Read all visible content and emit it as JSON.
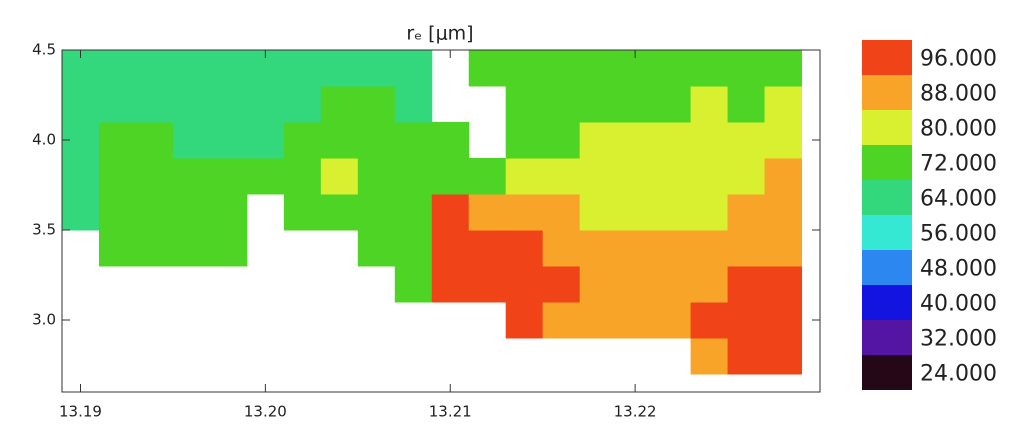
{
  "chart_data": {
    "type": "heatmap",
    "title": "rₑ [μm]",
    "xlim": [
      13.189,
      13.23
    ],
    "ylim": [
      2.6,
      4.5
    ],
    "xticks": [
      13.19,
      {
        "value": 13.2,
        "label": "13.20"
      },
      13.21,
      13.22
    ],
    "yticks": [
      {
        "value": 3.0,
        "label": "3.0"
      },
      3.5,
      {
        "value": 4.0,
        "label": "4.0"
      },
      4.5
    ],
    "xbins": [
      13.189,
      13.191,
      13.193,
      13.195,
      13.197,
      13.199,
      13.201,
      13.203,
      13.205,
      13.207,
      13.209,
      13.211,
      13.213,
      13.215,
      13.217,
      13.219,
      13.221,
      13.223,
      13.225,
      13.227,
      13.229
    ],
    "ybins": [
      2.7,
      2.9,
      3.1,
      3.3,
      3.5,
      3.7,
      3.9,
      4.1,
      4.3,
      4.5
    ],
    "z": [
      [
        null,
        null,
        null,
        null,
        null,
        null,
        null,
        null,
        null,
        null,
        null,
        null,
        null,
        null,
        null,
        null,
        null,
        90,
        96,
        94
      ],
      [
        null,
        null,
        null,
        null,
        null,
        null,
        null,
        null,
        null,
        null,
        null,
        null,
        92,
        90,
        86,
        88,
        88,
        92,
        96,
        94
      ],
      [
        null,
        null,
        null,
        null,
        null,
        null,
        null,
        null,
        null,
        72,
        94,
        92,
        96,
        92,
        86,
        88,
        88,
        90,
        94,
        92
      ],
      [
        null,
        68,
        68,
        70,
        70,
        null,
        null,
        null,
        68,
        74,
        96,
        94,
        94,
        90,
        84,
        86,
        86,
        84,
        88,
        90
      ],
      [
        66,
        68,
        70,
        70,
        70,
        null,
        70,
        72,
        70,
        72,
        92,
        90,
        88,
        84,
        80,
        82,
        80,
        82,
        84,
        86
      ],
      [
        66,
        68,
        70,
        68,
        68,
        68,
        70,
        80,
        72,
        72,
        70,
        72,
        76,
        80,
        80,
        82,
        80,
        80,
        82,
        84
      ],
      [
        64,
        68,
        68,
        66,
        66,
        66,
        68,
        70,
        72,
        70,
        68,
        null,
        70,
        74,
        76,
        78,
        76,
        78,
        78,
        80
      ],
      [
        62,
        64,
        66,
        64,
        64,
        66,
        66,
        68,
        68,
        66,
        null,
        null,
        68,
        70,
        72,
        74,
        74,
        76,
        74,
        76
      ],
      [
        60,
        62,
        64,
        62,
        62,
        64,
        62,
        60,
        66,
        66,
        null,
        70,
        68,
        68,
        70,
        72,
        72,
        72,
        74,
        74
      ]
    ],
    "colorbar": [
      {
        "value": 96,
        "label": "96.000",
        "color": "#f04418"
      },
      {
        "value": 88,
        "label": "88.000",
        "color": "#f8a428"
      },
      {
        "value": 80,
        "label": "80.000",
        "color": "#d8f030"
      },
      {
        "value": 72,
        "label": "72.000",
        "color": "#4ed424"
      },
      {
        "value": 64,
        "label": "64.000",
        "color": "#34d87c"
      },
      {
        "value": 56,
        "label": "56.000",
        "color": "#34e8d4"
      },
      {
        "value": 48,
        "label": "48.000",
        "color": "#2c88f0"
      },
      {
        "value": 40,
        "label": "40.000",
        "color": "#1414e0"
      },
      {
        "value": 32,
        "label": "32.000",
        "color": "#5414a4"
      },
      {
        "value": 24,
        "label": "24.000",
        "color": "#240818"
      }
    ]
  }
}
